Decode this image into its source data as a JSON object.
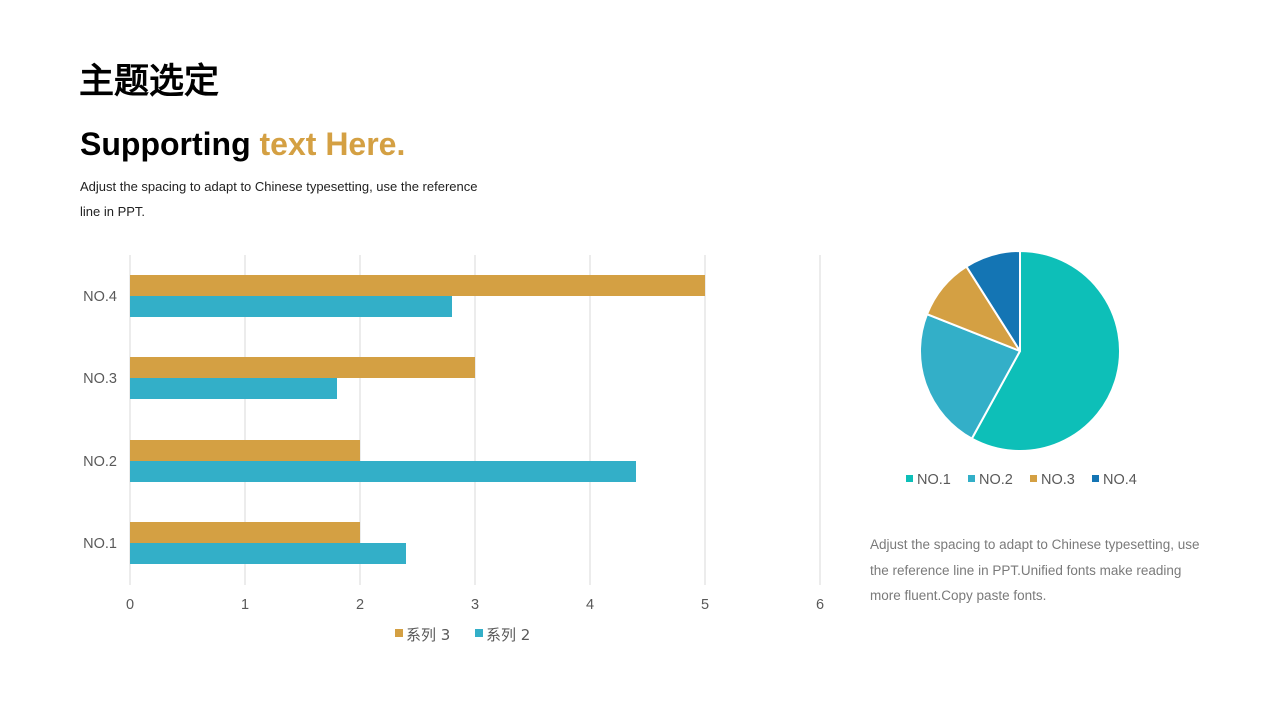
{
  "header": {
    "title": "主题选定",
    "subtitle_lead": "Supporting ",
    "subtitle_accent": "text Here.",
    "description": "Adjust the spacing to adapt to Chinese typesetting, use the reference line in PPT."
  },
  "side_text": "Adjust the spacing to adapt to Chinese typesetting, use the reference line in PPT.Unified fonts make reading more fluent.Copy paste fonts.",
  "colors": {
    "accent": "#D4A043",
    "series3": "#D4A043",
    "series2": "#33AFC8",
    "pie_no1": "#0DBFB8",
    "pie_no2": "#33AFC8",
    "pie_no3": "#D4A043",
    "pie_no4": "#1475B4",
    "grid": "#D9D9D9"
  },
  "chart_data": [
    {
      "type": "bar",
      "orientation": "horizontal",
      "categories": [
        "NO.1",
        "NO.2",
        "NO.3",
        "NO.4"
      ],
      "series": [
        {
          "name": "系列 3",
          "values": [
            2,
            2,
            3,
            5
          ],
          "color": "#D4A043"
        },
        {
          "name": "系列 2",
          "values": [
            2.4,
            4.4,
            1.8,
            2.8
          ],
          "color": "#33AFC8"
        }
      ],
      "xlim": [
        0,
        6
      ],
      "xticks": [
        0,
        1,
        2,
        3,
        4,
        5,
        6
      ],
      "grid": true,
      "legend": "bottom"
    },
    {
      "type": "pie",
      "categories": [
        "NO.1",
        "NO.2",
        "NO.3",
        "NO.4"
      ],
      "values": [
        58,
        23,
        10,
        9
      ],
      "colors": [
        "#0DBFB8",
        "#33AFC8",
        "#D4A043",
        "#1475B4"
      ],
      "legend": "bottom"
    }
  ]
}
